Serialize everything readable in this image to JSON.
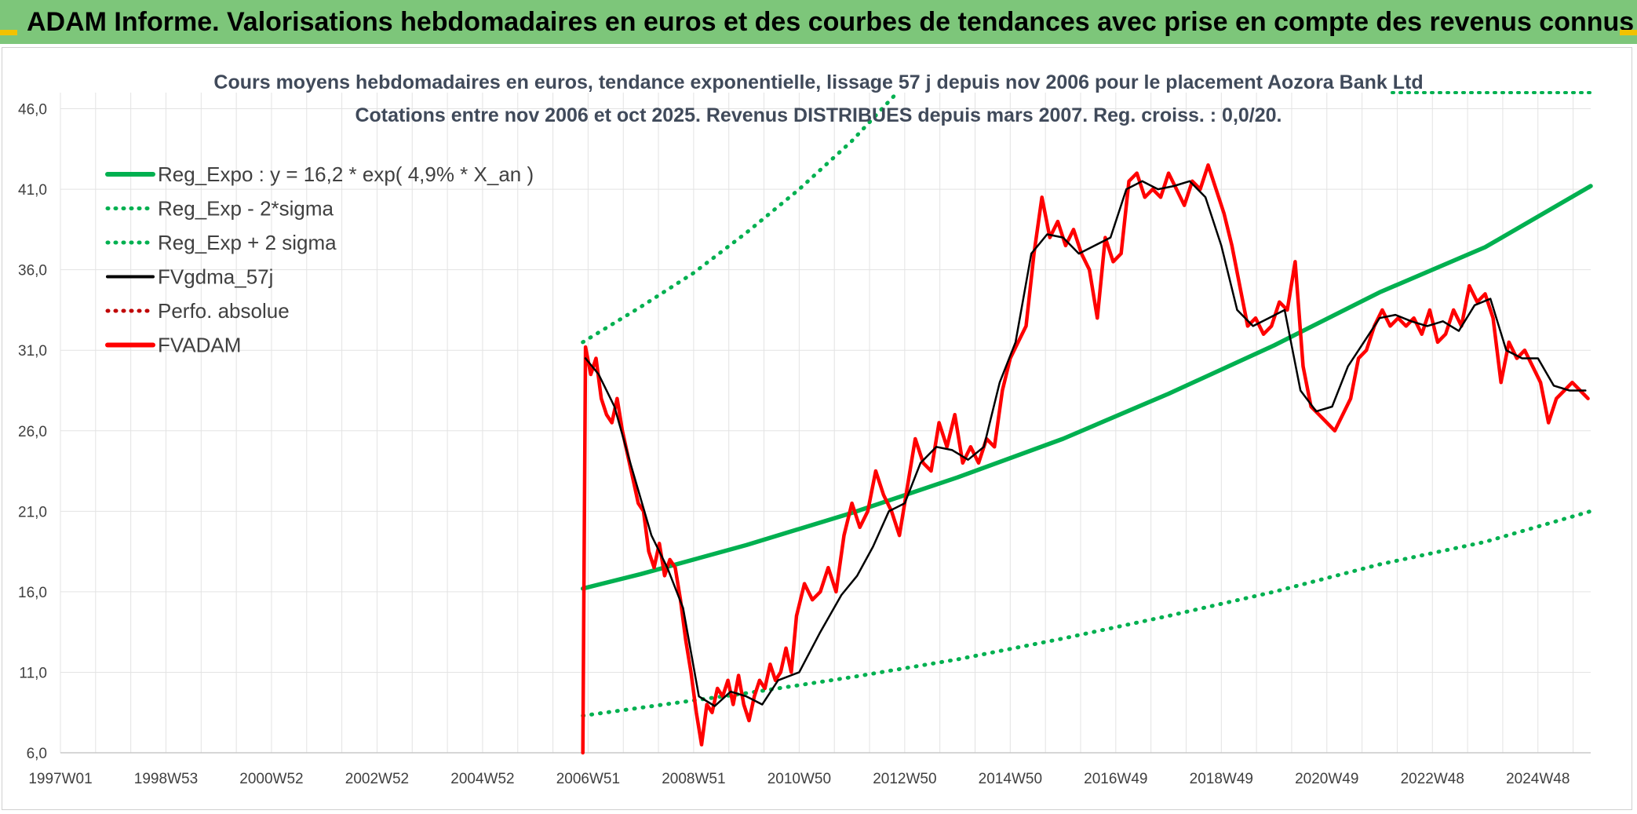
{
  "banner": {
    "text": "ADAM Informe. Valorisations hebdomadaires en euros et des courbes de tendances avec prise en compte des revenus connus distribués"
  },
  "colors": {
    "banner": "#7dc67a",
    "green": "#00b050",
    "red": "#ff0000",
    "black": "#000000",
    "darkred": "#c00000"
  },
  "chart_data": {
    "type": "line",
    "title": "Cours moyens hebdomadaires en euros, tendance exponentielle, lissage 57 j depuis nov 2006 pour le placement Aozora Bank Ltd",
    "subtitle": "Cotations entre nov 2006 et oct 2025. Revenus DISTRIBUES depuis mars 2007. Reg. croiss. : 0,0/20.",
    "xlabel": "",
    "ylabel": "",
    "xlim": [
      1997.0,
      2026.0
    ],
    "ylim": [
      6.0,
      47.0
    ],
    "grid": true,
    "legend_position": "top-left",
    "x_ticks": [
      {
        "label": "1997W01",
        "x": 1997.0
      },
      {
        "label": "1998W53",
        "x": 1999.0
      },
      {
        "label": "2000W52",
        "x": 2001.0
      },
      {
        "label": "2002W52",
        "x": 2003.0
      },
      {
        "label": "2004W52",
        "x": 2005.0
      },
      {
        "label": "2006W51",
        "x": 2007.0
      },
      {
        "label": "2008W51",
        "x": 2009.0
      },
      {
        "label": "2010W50",
        "x": 2011.0
      },
      {
        "label": "2012W50",
        "x": 2013.0
      },
      {
        "label": "2014W50",
        "x": 2015.0
      },
      {
        "label": "2016W49",
        "x": 2017.0
      },
      {
        "label": "2018W49",
        "x": 2019.0
      },
      {
        "label": "2020W49",
        "x": 2021.0
      },
      {
        "label": "2022W48",
        "x": 2023.0
      },
      {
        "label": "2024W48",
        "x": 2025.0
      }
    ],
    "y_ticks": [
      {
        "label": "6,0",
        "y": 6.0
      },
      {
        "label": "11,0",
        "y": 11.0
      },
      {
        "label": "16,0",
        "y": 16.0
      },
      {
        "label": "21,0",
        "y": 21.0
      },
      {
        "label": "26,0",
        "y": 26.0
      },
      {
        "label": "31,0",
        "y": 31.0
      },
      {
        "label": "36,0",
        "y": 36.0
      },
      {
        "label": "41,0",
        "y": 41.0
      },
      {
        "label": "46,0",
        "y": 46.0
      }
    ],
    "series": [
      {
        "name": "Reg_Expo : y = 16,2 * exp( 4,9% *  X_an )",
        "color": "#00b050",
        "style": "solid",
        "x": [
          2006.9,
          2008.0,
          2010.0,
          2012.0,
          2014.0,
          2016.0,
          2018.0,
          2020.0,
          2022.0,
          2024.0,
          2026.0
        ],
        "y": [
          16.2,
          17.1,
          18.9,
          20.9,
          23.1,
          25.5,
          28.3,
          31.3,
          34.6,
          37.4,
          41.2
        ]
      },
      {
        "name": "Reg_Exp - 2*sigma",
        "color": "#00b050",
        "style": "dotted",
        "x": [
          2006.9,
          2008.0,
          2010.0,
          2012.0,
          2014.0,
          2016.0,
          2018.0,
          2020.0,
          2022.0,
          2024.0,
          2026.0
        ],
        "y": [
          8.3,
          8.8,
          9.7,
          10.7,
          11.8,
          13.1,
          14.5,
          16.0,
          17.7,
          19.1,
          21.0
        ]
      },
      {
        "name": "Reg_Exp + 2 sigma",
        "color": "#00b050",
        "style": "dotted",
        "x": [
          2006.9,
          2008.0,
          2009.0,
          2010.0,
          2011.0,
          2012.0,
          2012.8
        ],
        "y": [
          31.5,
          33.7,
          35.8,
          38.3,
          41.0,
          44.0,
          46.8
        ]
      },
      {
        "name": "FVgdma_57j",
        "color": "#000000",
        "style": "solid",
        "x": [
          2006.95,
          2007.2,
          2007.5,
          2007.8,
          2008.2,
          2008.5,
          2008.8,
          2009.1,
          2009.4,
          2009.7,
          2010.0,
          2010.3,
          2010.6,
          2011.0,
          2011.4,
          2011.8,
          2012.1,
          2012.4,
          2012.7,
          2013.0,
          2013.3,
          2013.6,
          2013.9,
          2014.2,
          2014.5,
          2014.8,
          2015.1,
          2015.4,
          2015.7,
          2016.0,
          2016.3,
          2016.6,
          2016.9,
          2017.2,
          2017.5,
          2017.8,
          2018.1,
          2018.4,
          2018.7,
          2019.0,
          2019.3,
          2019.6,
          2019.9,
          2020.2,
          2020.5,
          2020.8,
          2021.1,
          2021.4,
          2021.7,
          2022.0,
          2022.3,
          2022.6,
          2022.9,
          2023.2,
          2023.5,
          2023.8,
          2024.1,
          2024.4,
          2024.7,
          2025.0,
          2025.3,
          2025.6,
          2025.9
        ],
        "y": [
          30.5,
          29.5,
          27.5,
          24.0,
          19.5,
          17.5,
          15.0,
          9.5,
          8.9,
          9.8,
          9.5,
          9.0,
          10.5,
          11.0,
          13.5,
          15.8,
          17.0,
          18.8,
          21.0,
          21.5,
          24.0,
          25.0,
          24.8,
          24.2,
          25.0,
          29.0,
          31.5,
          37.0,
          38.2,
          38.0,
          37.0,
          37.5,
          38.0,
          41.0,
          41.5,
          41.0,
          41.2,
          41.5,
          40.5,
          37.5,
          33.5,
          32.5,
          33.0,
          33.5,
          28.5,
          27.2,
          27.5,
          30.0,
          31.5,
          33.0,
          33.2,
          32.8,
          32.5,
          32.8,
          32.2,
          33.8,
          34.2,
          31.0,
          30.5,
          30.5,
          28.8,
          28.5,
          28.5
        ]
      },
      {
        "name": "Perfo. absolue",
        "color": "#c00000",
        "style": "dotted",
        "x": [],
        "y": []
      },
      {
        "name": "FVADAM",
        "color": "#ff0000",
        "style": "solid",
        "x": [
          2006.9,
          2006.95,
          2007.05,
          2007.15,
          2007.25,
          2007.35,
          2007.45,
          2007.55,
          2007.65,
          2007.75,
          2007.85,
          2007.95,
          2008.05,
          2008.15,
          2008.25,
          2008.35,
          2008.45,
          2008.55,
          2008.65,
          2008.75,
          2008.85,
          2008.95,
          2009.05,
          2009.15,
          2009.25,
          2009.35,
          2009.45,
          2009.55,
          2009.65,
          2009.75,
          2009.85,
          2009.95,
          2010.05,
          2010.15,
          2010.25,
          2010.35,
          2010.45,
          2010.55,
          2010.65,
          2010.75,
          2010.85,
          2010.95,
          2011.1,
          2011.25,
          2011.4,
          2011.55,
          2011.7,
          2011.85,
          2012.0,
          2012.15,
          2012.3,
          2012.45,
          2012.6,
          2012.75,
          2012.9,
          2013.05,
          2013.2,
          2013.35,
          2013.5,
          2013.65,
          2013.8,
          2013.95,
          2014.1,
          2014.25,
          2014.4,
          2014.55,
          2014.7,
          2014.85,
          2015.0,
          2015.15,
          2015.3,
          2015.45,
          2015.6,
          2015.75,
          2015.9,
          2016.05,
          2016.2,
          2016.35,
          2016.5,
          2016.65,
          2016.8,
          2016.95,
          2017.1,
          2017.25,
          2017.4,
          2017.55,
          2017.7,
          2017.85,
          2018.0,
          2018.15,
          2018.3,
          2018.45,
          2018.6,
          2018.75,
          2018.9,
          2019.05,
          2019.2,
          2019.35,
          2019.5,
          2019.65,
          2019.8,
          2019.95,
          2020.1,
          2020.25,
          2020.4,
          2020.55,
          2020.7,
          2020.85,
          2021.0,
          2021.15,
          2021.3,
          2021.45,
          2021.6,
          2021.75,
          2021.9,
          2022.05,
          2022.2,
          2022.35,
          2022.5,
          2022.65,
          2022.8,
          2022.95,
          2023.1,
          2023.25,
          2023.4,
          2023.55,
          2023.7,
          2023.85,
          2024.0,
          2024.15,
          2024.3,
          2024.45,
          2024.6,
          2024.75,
          2024.9,
          2025.05,
          2025.2,
          2025.35,
          2025.5,
          2025.65,
          2025.8,
          2025.95
        ],
        "y": [
          6.0,
          31.2,
          29.5,
          30.5,
          28.0,
          27.0,
          26.5,
          28.0,
          26.0,
          24.5,
          23.0,
          21.5,
          21.0,
          18.5,
          17.5,
          19.0,
          17.0,
          18.0,
          17.5,
          15.5,
          13.0,
          11.0,
          8.5,
          6.5,
          9.0,
          8.5,
          10.0,
          9.5,
          10.5,
          9.0,
          10.8,
          9.0,
          8.0,
          9.5,
          10.5,
          10.0,
          11.5,
          10.5,
          11.0,
          12.5,
          11.0,
          14.5,
          16.5,
          15.5,
          16.0,
          17.5,
          16.0,
          19.5,
          21.5,
          20.0,
          21.0,
          23.5,
          22.0,
          21.0,
          19.5,
          22.5,
          25.5,
          24.0,
          23.5,
          26.5,
          25.0,
          27.0,
          24.0,
          25.0,
          24.0,
          25.5,
          25.0,
          28.5,
          30.5,
          31.5,
          32.5,
          37.0,
          40.5,
          38.0,
          39.0,
          37.5,
          38.5,
          37.0,
          36.0,
          33.0,
          38.0,
          36.5,
          37.0,
          41.5,
          42.0,
          40.5,
          41.0,
          40.5,
          42.0,
          41.0,
          40.0,
          41.5,
          41.0,
          42.5,
          41.0,
          39.5,
          37.5,
          35.0,
          32.5,
          33.0,
          32.0,
          32.5,
          34.0,
          33.5,
          36.5,
          30.0,
          27.5,
          27.0,
          26.5,
          26.0,
          27.0,
          28.0,
          30.5,
          31.0,
          32.5,
          33.5,
          32.5,
          33.0,
          32.5,
          33.0,
          32.0,
          33.5,
          31.5,
          32.0,
          33.5,
          32.5,
          35.0,
          34.0,
          34.5,
          33.0,
          29.0,
          31.5,
          30.5,
          31.0,
          30.0,
          29.0,
          26.5,
          28.0,
          28.5,
          29.0,
          28.5,
          28.0
        ]
      }
    ]
  }
}
